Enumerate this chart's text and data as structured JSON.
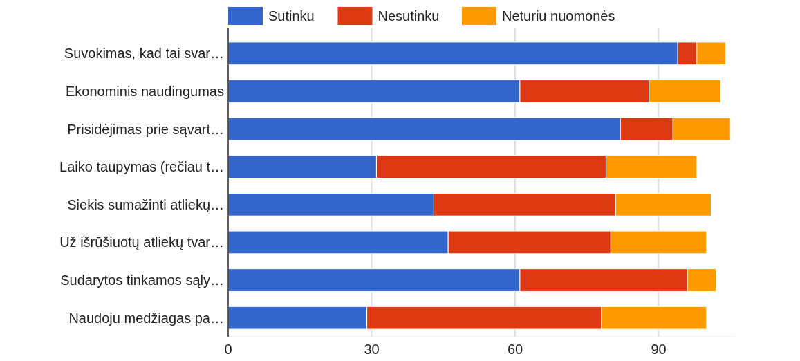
{
  "chart_data": {
    "type": "bar",
    "orientation": "horizontal",
    "stacked": true,
    "categories": [
      "Suvokimas, kad tai svar…",
      "Ekonominis naudingumas",
      "Prisidėjimas prie sąvart…",
      "Laiko taupymas (rečiau t…",
      "Siekis sumažinti atliekų…",
      "Už išrūšiuotų atliekų tvar…",
      "Sudarytos tinkamos sąly…",
      "Naudoju medžiagas pa…"
    ],
    "series": [
      {
        "name": "Sutinku",
        "color": "#3366cc",
        "values": [
          94,
          61,
          82,
          31,
          43,
          46,
          61,
          29
        ]
      },
      {
        "name": "Nesutinku",
        "color": "#dc3912",
        "values": [
          4,
          27,
          11,
          48,
          38,
          34,
          35,
          49
        ]
      },
      {
        "name": "Neturiu nuomonės",
        "color": "#ff9900",
        "values": [
          6,
          15,
          12,
          19,
          20,
          20,
          6,
          22
        ]
      }
    ],
    "xlim": [
      0,
      106
    ],
    "xticks": [
      0,
      30,
      60,
      90
    ],
    "grid": "x",
    "legend": "top"
  }
}
